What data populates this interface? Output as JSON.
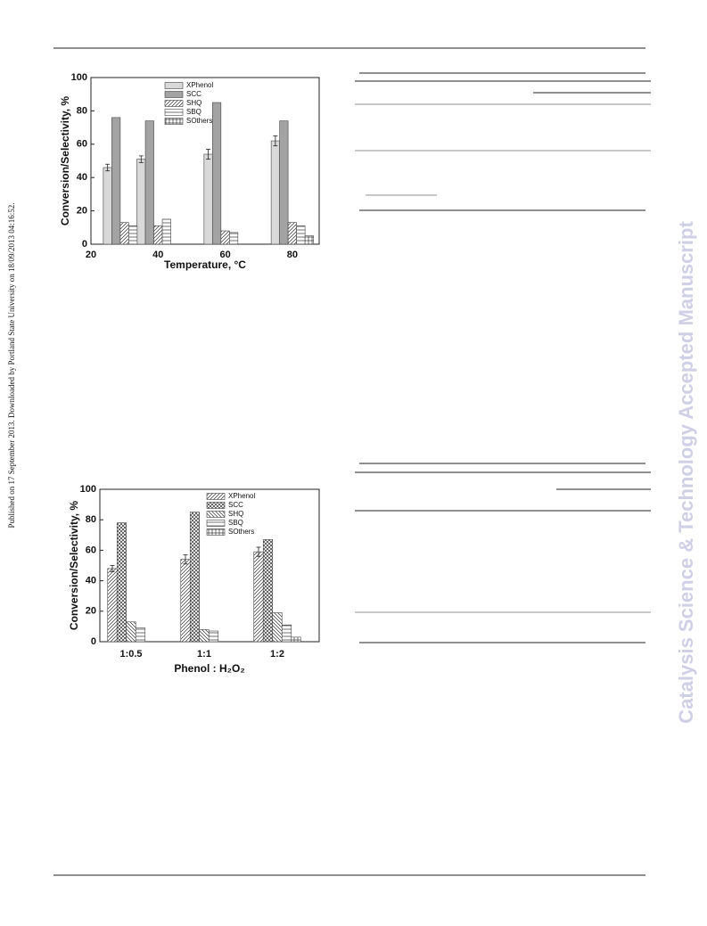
{
  "publication_note": "Published on 17 September 2013. Downloaded by Portland State University on 18/09/2013 04:16:52.",
  "watermark": "Catalysis Science & Technology Accepted Manuscript",
  "chart_data": [
    {
      "type": "bar",
      "x_label": "Temperature, °C",
      "y_label": "Conversion/Selectivity, %",
      "x": [
        30,
        40,
        60,
        80
      ],
      "xlim": [
        20,
        88
      ],
      "xticks": [
        20,
        40,
        60,
        80
      ],
      "ylim": [
        0,
        100
      ],
      "yticks": [
        0,
        20,
        40,
        60,
        80,
        100
      ],
      "series": [
        {
          "name": "XPhenol",
          "color": "#d9d9d9",
          "pattern": "solid",
          "values": [
            46,
            51,
            54,
            62
          ],
          "errors": [
            2,
            2,
            3,
            3
          ]
        },
        {
          "name": "SCC",
          "color": "#a3a3a3",
          "pattern": "solid",
          "values": [
            76,
            74,
            85,
            74
          ]
        },
        {
          "name": "SHQ",
          "color": "#ffffff",
          "pattern": "diagonal",
          "values": [
            13,
            11,
            8,
            13
          ]
        },
        {
          "name": "SBQ",
          "color": "#ffffff",
          "pattern": "horizontal",
          "values": [
            11,
            15,
            7,
            11
          ]
        },
        {
          "name": "SOthers",
          "color": "#ffffff",
          "pattern": "grid",
          "values": [
            null,
            null,
            null,
            5
          ]
        }
      ]
    },
    {
      "type": "bar",
      "x_label": "Phenol : H₂O₂",
      "y_label": "Conversion/Selectivity, %",
      "categories": [
        "1:0.5",
        "1:1",
        "1:2"
      ],
      "ylim": [
        0,
        100
      ],
      "yticks": [
        0,
        20,
        40,
        60,
        80,
        100
      ],
      "series": [
        {
          "name": "XPhenol",
          "color": "#ffffff",
          "pattern": "diagonal",
          "values": [
            48,
            54,
            59
          ],
          "errors": [
            2,
            3,
            3
          ]
        },
        {
          "name": "SCC",
          "color": "#ffffff",
          "pattern": "crosshatch",
          "values": [
            78,
            85,
            67
          ]
        },
        {
          "name": "SHQ",
          "color": "#ffffff",
          "pattern": "backdiagonal",
          "values": [
            13,
            8,
            19
          ]
        },
        {
          "name": "SBQ",
          "color": "#ffffff",
          "pattern": "horizontal",
          "values": [
            9,
            7,
            11
          ]
        },
        {
          "name": "SOthers",
          "color": "#ffffff",
          "pattern": "grid",
          "values": [
            null,
            null,
            3
          ]
        }
      ]
    }
  ]
}
